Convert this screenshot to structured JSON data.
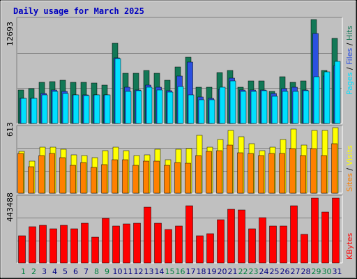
{
  "title": "Daily usage for March 2025",
  "colors": {
    "background": "#c0c0c0",
    "frame": "#ffffff",
    "title": "#0000c0",
    "pages": "#00e0ff",
    "files": "#2b50e0",
    "hits": "#127856",
    "visits": "#ffff00",
    "sites": "#ff8000",
    "kbytes": "#ff0000",
    "weekend_label": "#008040",
    "weekday_label": "#000080"
  },
  "axis_labels": {
    "top_max": "12693",
    "middle_max": "613",
    "bottom_max": "443488",
    "pages": "Pages",
    "files": "Files",
    "hits": "Hits",
    "sites": "Sites",
    "visits": "Visits",
    "kbytes": "KBytes",
    "sep": " / "
  },
  "chart_data": [
    {
      "type": "bar",
      "title": "Daily usage for March 2025",
      "categories": [
        "1",
        "2",
        "3",
        "4",
        "5",
        "6",
        "7",
        "8",
        "9",
        "10",
        "11",
        "12",
        "13",
        "14",
        "15",
        "16",
        "17",
        "18",
        "19",
        "20",
        "21",
        "22",
        "23",
        "24",
        "25",
        "26",
        "27",
        "28",
        "29",
        "30",
        "31"
      ],
      "weekend_days": [
        "1",
        "2",
        "8",
        "9",
        "15",
        "16",
        "22",
        "23",
        "29",
        "30"
      ],
      "ylim": [
        0,
        12693
      ],
      "series": [
        {
          "name": "Hits",
          "values": [
            4100,
            4300,
            5000,
            5100,
            5300,
            5000,
            5000,
            4900,
            4700,
            9800,
            6100,
            6100,
            6500,
            6100,
            5300,
            6900,
            8100,
            4400,
            4400,
            6200,
            6500,
            4400,
            5200,
            5200,
            3900,
            5700,
            5000,
            5200,
            12700,
            6500,
            10400
          ]
        },
        {
          "name": "Files",
          "values": [
            3100,
            3100,
            3700,
            4100,
            3900,
            3500,
            3500,
            3500,
            3500,
            8000,
            4400,
            4100,
            4700,
            4400,
            4000,
            5800,
            7500,
            3200,
            3100,
            4200,
            5500,
            4100,
            4100,
            4100,
            3700,
            4300,
            4400,
            4100,
            11000,
            5800,
            7100
          ]
        },
        {
          "name": "Pages",
          "values": [
            3100,
            3100,
            3500,
            3900,
            3700,
            3500,
            3400,
            3500,
            3500,
            7900,
            3900,
            4000,
            4400,
            4100,
            3800,
            4500,
            3500,
            2900,
            2900,
            4400,
            5200,
            3900,
            3900,
            4000,
            3300,
            3900,
            3900,
            4000,
            5700,
            6300,
            7600
          ]
        }
      ]
    },
    {
      "type": "bar",
      "categories": [
        "1",
        "2",
        "3",
        "4",
        "5",
        "6",
        "7",
        "8",
        "9",
        "10",
        "11",
        "12",
        "13",
        "14",
        "15",
        "16",
        "17",
        "18",
        "19",
        "20",
        "21",
        "22",
        "23",
        "24",
        "25",
        "26",
        "27",
        "28",
        "29",
        "30",
        "31"
      ],
      "ylim": [
        0,
        613
      ],
      "series": [
        {
          "name": "Visits",
          "values": [
            390,
            300,
            430,
            430,
            410,
            360,
            350,
            330,
            400,
            430,
            400,
            350,
            360,
            410,
            310,
            410,
            420,
            540,
            430,
            500,
            590,
            530,
            460,
            400,
            430,
            500,
            600,
            450,
            590,
            590,
            610
          ]
        },
        {
          "name": "Sites",
          "values": [
            370,
            250,
            350,
            370,
            330,
            260,
            290,
            240,
            270,
            310,
            310,
            260,
            300,
            300,
            260,
            290,
            280,
            350,
            390,
            400,
            450,
            380,
            370,
            350,
            370,
            370,
            420,
            350,
            420,
            350,
            460
          ]
        }
      ]
    },
    {
      "type": "bar",
      "categories": [
        "1",
        "2",
        "3",
        "4",
        "5",
        "6",
        "7",
        "8",
        "9",
        "10",
        "11",
        "12",
        "13",
        "14",
        "15",
        "16",
        "17",
        "18",
        "19",
        "20",
        "21",
        "22",
        "23",
        "24",
        "25",
        "26",
        "27",
        "28",
        "29",
        "30",
        "31"
      ],
      "ylim": [
        0,
        443488
      ],
      "series": [
        {
          "name": "KBytes",
          "values": [
            182000,
            247000,
            253000,
            229000,
            255000,
            231000,
            267000,
            175000,
            302000,
            248000,
            264000,
            270000,
            379000,
            267000,
            228000,
            250000,
            386000,
            182000,
            197000,
            292000,
            363000,
            358000,
            230000,
            307000,
            250000,
            248000,
            385000,
            195000,
            441000,
            345000,
            441000
          ]
        }
      ]
    }
  ]
}
